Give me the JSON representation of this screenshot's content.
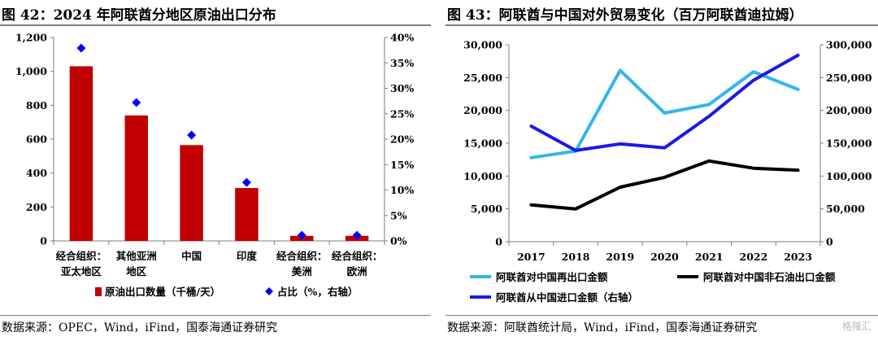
{
  "left_panel": {
    "title": "图 42：2024 年阿联酋分地区原油出口分布",
    "source": "数据来源：OPEC，Wind，iFind，国泰海通证券研究"
  },
  "right_panel": {
    "title": "图 43：阿联酋与中国对外贸易变化（百万阿联酋迪拉姆）",
    "source": "数据来源：阿联酋统计局，Wind，iFind，国泰海通证券研究",
    "watermark": "格隆汇"
  },
  "colors": {
    "bar": "#c00000",
    "diamond": "#0000ff",
    "line_reexport": "#33b5ee",
    "line_nonoil": "#000000",
    "line_import": "#1a1ae6",
    "axis": "#7f7f7f"
  },
  "chart_data": [
    {
      "type": "bar",
      "categories": [
        [
          "经合组织：",
          "亚太地区"
        ],
        [
          "其他亚洲",
          "地区"
        ],
        [
          "中国"
        ],
        [
          "印度"
        ],
        [
          "经合组织：",
          "美洲"
        ],
        [
          "经合组织：",
          "欧洲"
        ]
      ],
      "series": [
        {
          "name": "原油出口数量（千桶/天）",
          "axis": "left",
          "mark": "bar",
          "values": [
            1030,
            740,
            565,
            312,
            30,
            30
          ]
        },
        {
          "name": "占比（%，右轴）",
          "axis": "right",
          "mark": "diamond",
          "values": [
            37.9,
            27.2,
            20.8,
            11.5,
            1.1,
            1.1
          ]
        }
      ],
      "y_left": {
        "min": 0,
        "max": 1200,
        "ticks": [
          0,
          200,
          400,
          600,
          800,
          1000,
          1200
        ],
        "tick_labels": [
          "0",
          "200",
          "400",
          "600",
          "800",
          "1,000",
          "1,200"
        ]
      },
      "y_right": {
        "min": 0,
        "max": 40,
        "ticks": [
          0,
          5,
          10,
          15,
          20,
          25,
          30,
          35,
          40
        ],
        "tick_labels": [
          "0%",
          "5%",
          "10%",
          "15%",
          "20%",
          "25%",
          "30%",
          "35%",
          "40%"
        ]
      },
      "legend": "bottom",
      "grid": false
    },
    {
      "type": "line",
      "x": [
        "2017",
        "2018",
        "2019",
        "2020",
        "2021",
        "2022",
        "2023"
      ],
      "series": [
        {
          "name": "阿联酋对中国再出口金额",
          "axis": "left",
          "values": [
            12800,
            13800,
            26100,
            19600,
            20900,
            25900,
            23200
          ]
        },
        {
          "name": "阿联酋对中国非石油出口金额",
          "axis": "left",
          "values": [
            5600,
            5000,
            8300,
            9800,
            12300,
            11200,
            10900
          ]
        },
        {
          "name": "阿联酋从中国进口金额（右轴）",
          "axis": "right",
          "values": [
            176000,
            139000,
            149000,
            143000,
            191000,
            246000,
            284000
          ]
        }
      ],
      "y_left": {
        "min": 0,
        "max": 30000,
        "ticks": [
          0,
          5000,
          10000,
          15000,
          20000,
          25000,
          30000
        ],
        "tick_labels": [
          "0",
          "5,000",
          "10,000",
          "15,000",
          "20,000",
          "25,000",
          "30,000"
        ]
      },
      "y_right": {
        "min": 0,
        "max": 300000,
        "ticks": [
          0,
          50000,
          100000,
          150000,
          200000,
          250000,
          300000
        ],
        "tick_labels": [
          "0",
          "50,000",
          "100,000",
          "150,000",
          "200,000",
          "250,000",
          "300,000"
        ]
      },
      "legend": "bottom",
      "grid": false
    }
  ]
}
